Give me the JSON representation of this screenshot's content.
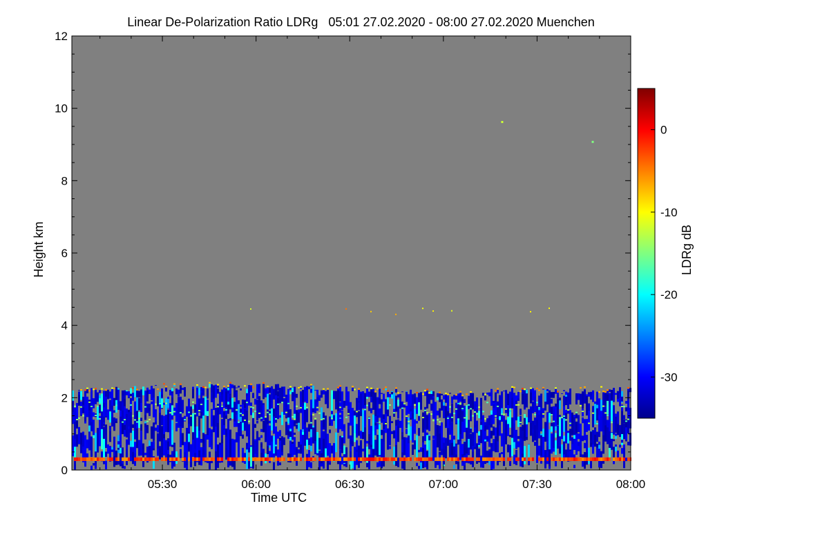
{
  "chart_data": {
    "type": "heatmap",
    "title": "Linear De-Polarization Ratio LDRg   05:01 27.02.2020 - 08:00 27.02.2020 Muenchen",
    "xlabel": "Time UTC",
    "ylabel": "Height km",
    "x_range_minutes": [
      301,
      480
    ],
    "y_range_km": [
      0,
      12
    ],
    "x_ticks": [
      {
        "label": "05:30",
        "value": 330
      },
      {
        "label": "06:00",
        "value": 360
      },
      {
        "label": "06:30",
        "value": 390
      },
      {
        "label": "07:00",
        "value": 420
      },
      {
        "label": "07:30",
        "value": 450
      },
      {
        "label": "08:00",
        "value": 480
      }
    ],
    "y_ticks": [
      {
        "label": "0",
        "value": 0
      },
      {
        "label": "2",
        "value": 2
      },
      {
        "label": "4",
        "value": 4
      },
      {
        "label": "6",
        "value": 6
      },
      {
        "label": "8",
        "value": 8
      },
      {
        "label": "10",
        "value": 10
      },
      {
        "label": "12",
        "value": 12
      }
    ],
    "colorbar": {
      "label": "LDRg dB",
      "range": [
        -35,
        5
      ],
      "ticks": [
        {
          "label": "0",
          "value": 0
        },
        {
          "label": "-10",
          "value": -10
        },
        {
          "label": "-20",
          "value": -20
        },
        {
          "label": "-30",
          "value": -30
        }
      ],
      "colors": [
        "#00008c",
        "#0000ff",
        "#0080ff",
        "#00ffff",
        "#80ff80",
        "#ffff00",
        "#ff8000",
        "#ff0000",
        "#800000"
      ]
    },
    "background_color": "#808080",
    "features": [
      {
        "name": "boundary-layer",
        "height_km": [
          0,
          2.3
        ],
        "ldr_db": -32
      },
      {
        "name": "surface-layer",
        "height_km": [
          0.25,
          0.35
        ],
        "ldr_db": -3
      },
      {
        "name": "scattered-points",
        "height_km": [
          4.3,
          4.5
        ],
        "ldr_db": -8
      },
      {
        "name": "isolated-point-1",
        "time_min": 438.5,
        "height_km": 9.65,
        "ldr_db": -12
      },
      {
        "name": "isolated-point-2",
        "time_min": 467.5,
        "height_km": 9.1,
        "ldr_db": -15
      }
    ]
  }
}
